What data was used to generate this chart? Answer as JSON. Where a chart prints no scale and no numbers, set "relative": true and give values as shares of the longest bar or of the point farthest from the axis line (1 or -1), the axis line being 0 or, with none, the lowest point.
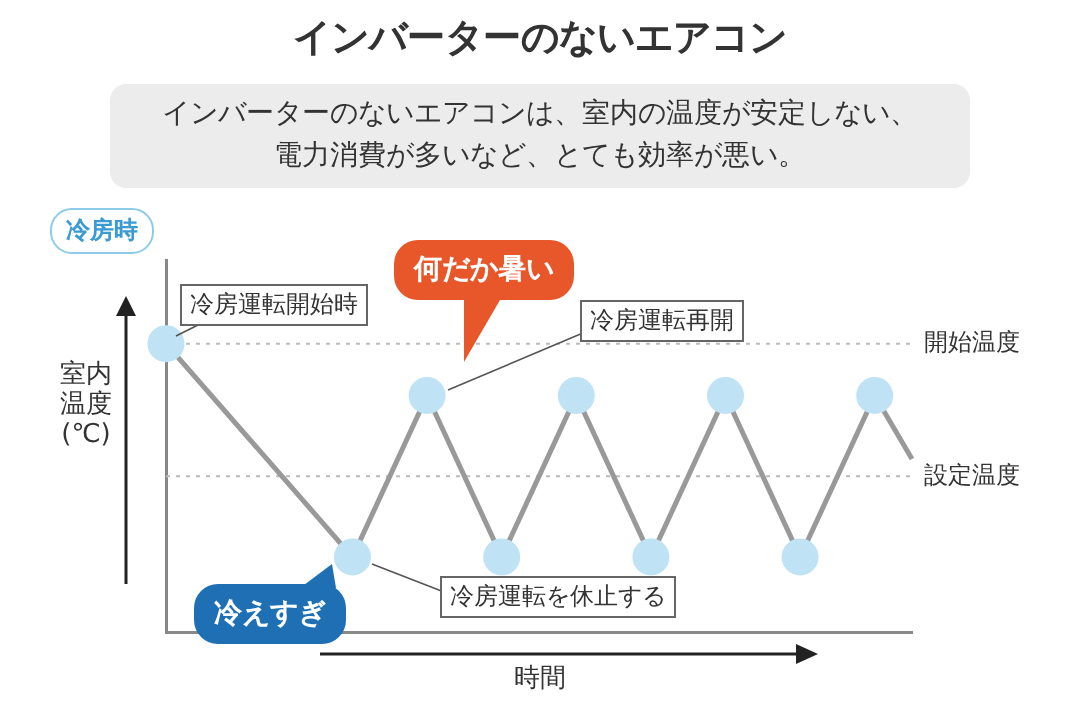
{
  "chart_data": {
    "type": "line",
    "title": "インバーターのないエアコン",
    "subtitle": "インバーターのないエアコンは、室内の温度が安定しない、電力消費が多いなど、とても効率が悪い。",
    "xlabel": "時間",
    "ylabel": "室内温度(℃)",
    "annotations": [
      "冷房時",
      "冷房運転開始時",
      "何だか暑い",
      "冷房運転再開",
      "冷えすぎ",
      "冷房運転を休止する"
    ],
    "categories": [
      null,
      null,
      null,
      null,
      null,
      null,
      null,
      null,
      null,
      null,
      null,
      null,
      null,
      null,
      null,
      null,
      null,
      null,
      null,
      null,
      null
    ],
    "relative": true,
    "series": [
      {
        "color": "#999999",
        "values": [
          1,
          null,
          null,
          null,
          null,
          0.26,
          null,
          0.82,
          null,
          0.26,
          null,
          0.82,
          null,
          0.26,
          null,
          0.82,
          null,
          0.26,
          null,
          0.82,
          0.6
        ]
      }
    ],
    "ref_lines": [
      {
        "axis": "y",
        "value": 1,
        "label": "開始温度",
        "color": "#bbbbbb",
        "line_style": "dotted"
      },
      {
        "axis": "y",
        "value": 0.54,
        "label": "設定温度",
        "color": "#bbbbbb",
        "line_style": "dotted"
      }
    ],
    "marker": "circle",
    "grid": false,
    "legend": false
  }
}
